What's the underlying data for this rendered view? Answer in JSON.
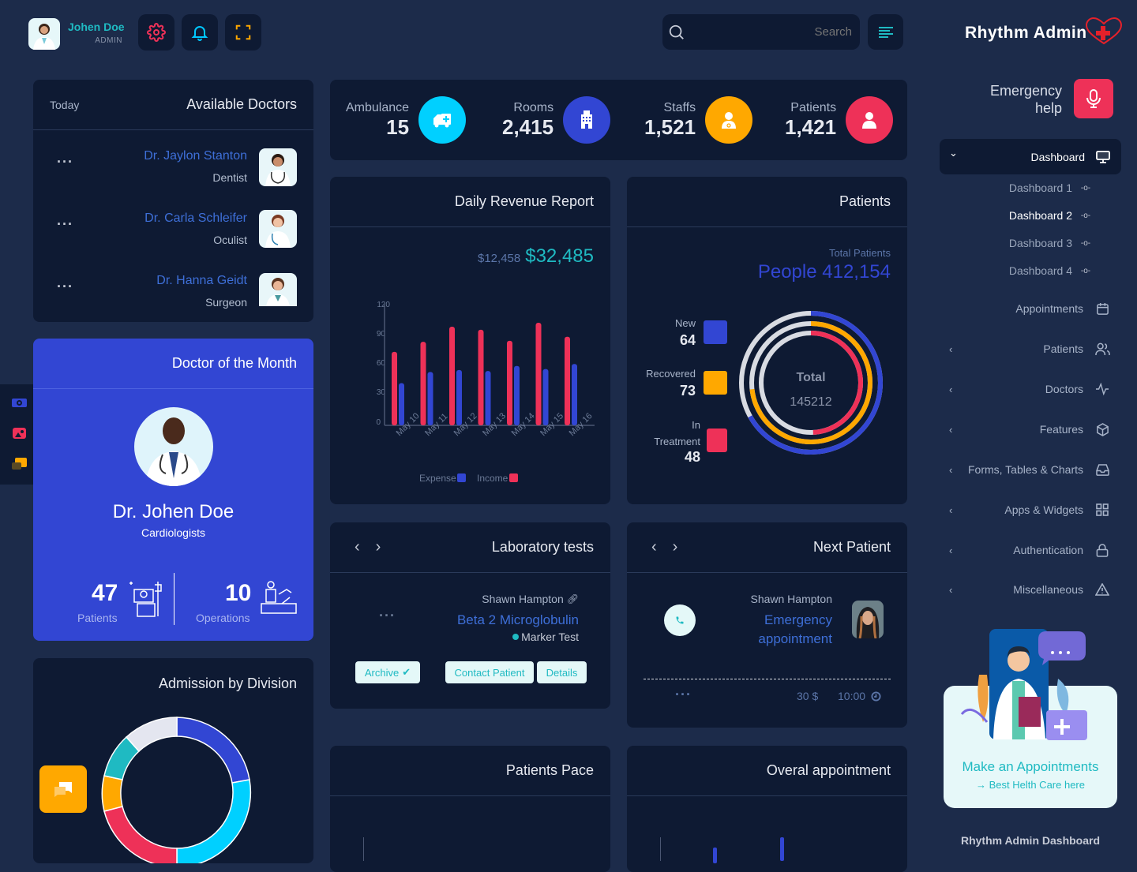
{
  "header": {
    "user_name": "Johen Doe",
    "user_role": "ADMIN",
    "search_placeholder": "Search",
    "brand": "Rhythm Admin"
  },
  "available_doctors": {
    "filter": "Today",
    "title": "Available Doctors",
    "items": [
      {
        "name": "Dr. Jaylon Stanton",
        "specialty": "Dentist"
      },
      {
        "name": "Dr. Carla Schleifer",
        "specialty": "Oculist"
      },
      {
        "name": "Dr. Hanna Geidt",
        "specialty": "Surgeon"
      }
    ]
  },
  "stats": [
    {
      "label": "Ambulance",
      "value": "15",
      "icon": "ambulance-icon",
      "color": "#00d0ff"
    },
    {
      "label": "Rooms",
      "value": "2,415",
      "icon": "hospital-icon",
      "color": "#3246d3"
    },
    {
      "label": "Staffs",
      "value": "1,521",
      "icon": "doctor-icon",
      "color": "#ffa800"
    },
    {
      "label": "Patients",
      "value": "1,421",
      "icon": "user-icon",
      "color": "#ee3158"
    }
  ],
  "doctor_of_month": {
    "title": "Doctor of the Month",
    "name": "Dr. Johen Doe",
    "specialty": "Cardiologists",
    "patients_value": "47",
    "patients_label": "Patients",
    "operations_value": "10",
    "operations_label": "Operations"
  },
  "revenue": {
    "title": "Daily Revenue Report",
    "secondary": "$12,458",
    "primary": "$32,485"
  },
  "patients_card": {
    "title": "Patients",
    "total_label": "Total Patients",
    "total_value": "People 412,154",
    "legend": [
      {
        "label": "New",
        "value": "64",
        "color": "#3246d3"
      },
      {
        "label": "Recovered",
        "value": "73",
        "color": "#ffa800"
      },
      {
        "label": "In Treatment",
        "value": "48",
        "color": "#ee3158"
      }
    ],
    "center_label": "Total",
    "center_value": "145212"
  },
  "lab_tests": {
    "title": "Laboratory tests",
    "patient": "Shawn Hampton",
    "test": "Beta 2 Microglobulin",
    "tag": "Marker Test",
    "archive": "Archive",
    "contact": "Contact Patient",
    "details": "Details"
  },
  "next_patient": {
    "title": "Next Patient",
    "name": "Shawn Hampton",
    "reason_line1": "Emergency",
    "reason_line2": "appointment",
    "price": "30 $",
    "time": "10:00"
  },
  "admission": {
    "title": "Admission by Division"
  },
  "patients_pace": {
    "title": "Patients Pace"
  },
  "overall_appointment": {
    "title": "Overal appointment"
  },
  "sidebar": {
    "emergency_line1": "Emergency",
    "emergency_line2": "help",
    "dashboard": "Dashboard",
    "sub_items": [
      "Dashboard 1",
      "Dashboard 2",
      "Dashboard 3",
      "Dashboard 4"
    ],
    "items": [
      {
        "label": "Appointments",
        "icon": "calendar-icon",
        "has_chevron": false
      },
      {
        "label": "Patients",
        "icon": "users-icon",
        "has_chevron": true
      },
      {
        "label": "Doctors",
        "icon": "activity-icon",
        "has_chevron": true
      },
      {
        "label": "Features",
        "icon": "box-icon",
        "has_chevron": true
      },
      {
        "label": "Forms, Tables & Charts",
        "icon": "inbox-icon",
        "has_chevron": true
      },
      {
        "label": "Apps & Widgets",
        "icon": "grid-icon",
        "has_chevron": true
      },
      {
        "label": "Authentication",
        "icon": "lock-icon",
        "has_chevron": true
      },
      {
        "label": "Miscellaneous",
        "icon": "alert-triangle-icon",
        "has_chevron": true
      }
    ],
    "promo_title": "Make an Appointments",
    "promo_sub": "→ Best Helth Care here",
    "footer": "Rhythm Admin Dashboard"
  },
  "chart_data": [
    {
      "type": "bar",
      "title": "Daily Revenue Report",
      "categories": [
        "May 10",
        "May 11",
        "May 12",
        "May 13",
        "May 14",
        "May 15",
        "May 16"
      ],
      "series": [
        {
          "name": "Income",
          "color": "#ee3158",
          "values": [
            73,
            83,
            98,
            95,
            84,
            102,
            88
          ]
        },
        {
          "name": "Expense",
          "color": "#3246d3",
          "values": [
            42,
            53,
            55,
            54,
            59,
            56,
            61
          ]
        }
      ],
      "ylim": [
        0,
        120
      ],
      "yticks": [
        0,
        30,
        60,
        90,
        120
      ],
      "legend": [
        "Expense",
        "Income"
      ]
    },
    {
      "type": "pie",
      "title": "Patients",
      "categories": [
        "New",
        "Recovered",
        "In Treatment"
      ],
      "values": [
        64,
        73,
        48
      ],
      "center_text": "Total 145212"
    },
    {
      "type": "pie",
      "title": "Admission by Division",
      "categories": [
        "Blue",
        "Cyan",
        "Red",
        "Orange",
        "Teal",
        "Gray"
      ],
      "values": [
        22,
        28,
        24,
        9,
        7,
        10
      ]
    }
  ]
}
